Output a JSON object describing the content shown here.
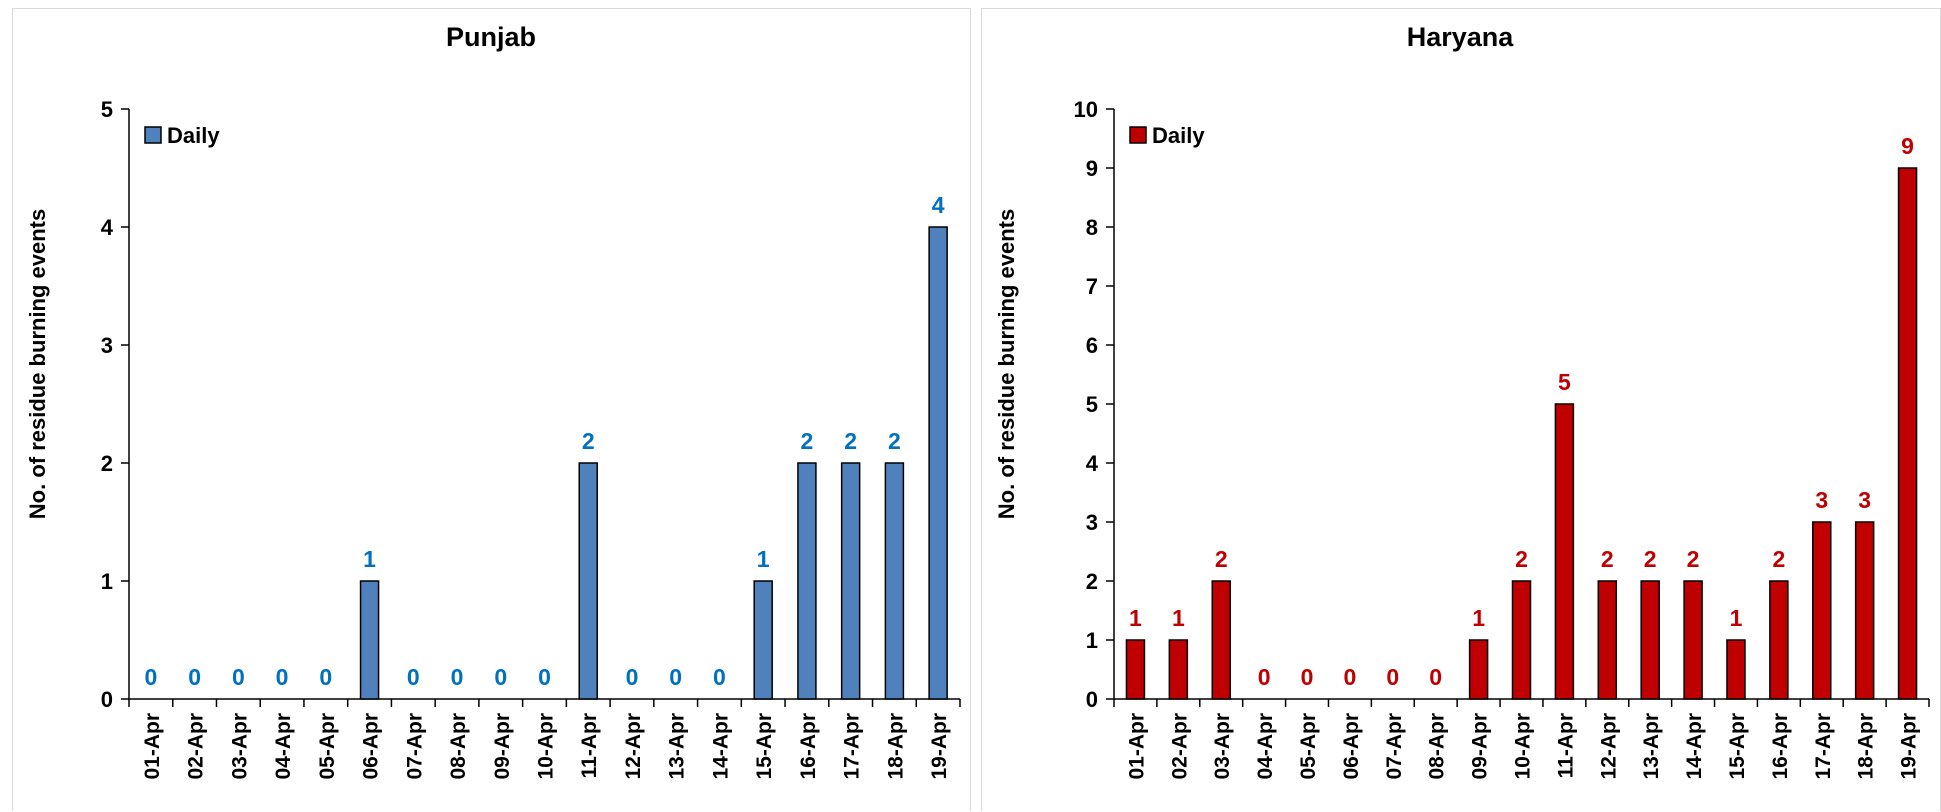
{
  "chart_data": [
    {
      "type": "bar",
      "title": "Punjab",
      "ylabel": "No. of residue burning events",
      "xlabel": "",
      "ylim": [
        0,
        5
      ],
      "yticks": [
        0,
        1,
        2,
        3,
        4,
        5
      ],
      "categories": [
        "01-Apr",
        "02-Apr",
        "03-Apr",
        "04-Apr",
        "05-Apr",
        "06-Apr",
        "07-Apr",
        "08-Apr",
        "09-Apr",
        "10-Apr",
        "11-Apr",
        "12-Apr",
        "13-Apr",
        "14-Apr",
        "15-Apr",
        "16-Apr",
        "17-Apr",
        "18-Apr",
        "19-Apr"
      ],
      "series": [
        {
          "name": "Daily",
          "values": [
            0,
            0,
            0,
            0,
            0,
            1,
            0,
            0,
            0,
            0,
            2,
            0,
            0,
            0,
            1,
            2,
            2,
            2,
            4
          ],
          "color": "#4f81bd",
          "label_color": "#0070c0"
        }
      ],
      "legend": "top-left",
      "grid": false
    },
    {
      "type": "bar",
      "title": "Haryana",
      "ylabel": "No. of residue burning events",
      "xlabel": "",
      "ylim": [
        0,
        10
      ],
      "yticks": [
        0,
        1,
        2,
        3,
        4,
        5,
        6,
        7,
        8,
        9,
        10
      ],
      "categories": [
        "01-Apr",
        "02-Apr",
        "03-Apr",
        "04-Apr",
        "05-Apr",
        "06-Apr",
        "07-Apr",
        "08-Apr",
        "09-Apr",
        "10-Apr",
        "11-Apr",
        "12-Apr",
        "13-Apr",
        "14-Apr",
        "15-Apr",
        "16-Apr",
        "17-Apr",
        "18-Apr",
        "19-Apr"
      ],
      "series": [
        {
          "name": "Daily",
          "values": [
            1,
            1,
            2,
            0,
            0,
            0,
            0,
            0,
            1,
            2,
            5,
            2,
            2,
            2,
            1,
            2,
            3,
            3,
            9
          ],
          "color": "#c00000",
          "label_color": "#c00000"
        }
      ],
      "legend": "top-left",
      "grid": false
    }
  ]
}
